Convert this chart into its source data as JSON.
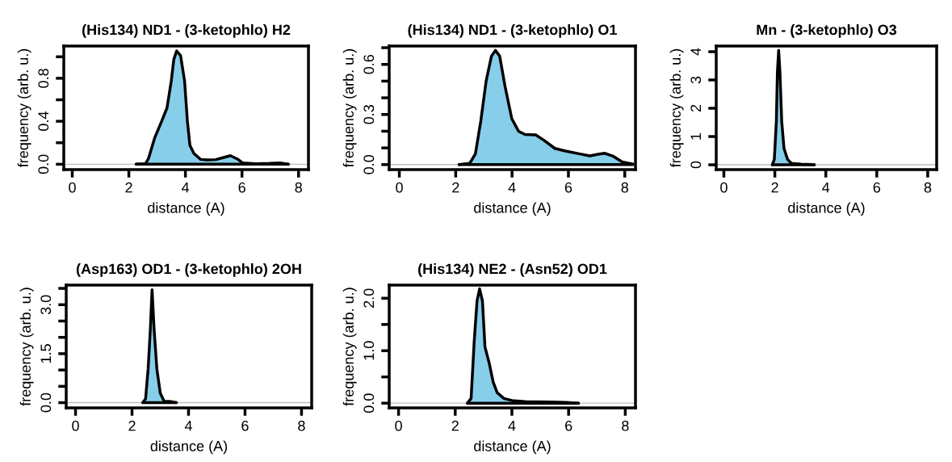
{
  "chart_data": [
    {
      "type": "area",
      "title": "(His134) ND1 - (3-ketophlo) H2",
      "xlabel": "distance (A)",
      "ylabel": "frequency (arb. u.)",
      "x": [
        2.26,
        2.59,
        2.69,
        2.92,
        3.16,
        3.35,
        3.5,
        3.59,
        3.69,
        3.83,
        3.97,
        4.07,
        4.16,
        4.3,
        4.54,
        4.78,
        5.07,
        5.35,
        5.59,
        5.83,
        6.02,
        6.5,
        6.97,
        7.35,
        7.64
      ],
      "series": [
        {
          "color": "#87ceeb",
          "values": [
            0,
            0.005,
            0.05,
            0.25,
            0.4,
            0.525,
            0.775,
            0.975,
            1.055,
            1.01,
            0.775,
            0.4,
            0.175,
            0.1,
            0.045,
            0.04,
            0.043,
            0.063,
            0.08,
            0.05,
            0.013,
            0.005,
            0.008,
            0.013,
            0
          ]
        }
      ],
      "xlim": [
        -0.3,
        8.35
      ],
      "xticks": [
        0,
        2,
        4,
        6,
        8
      ],
      "ylim": [
        -0.05,
        1.1
      ],
      "yticks": [
        {
          "value": 0,
          "label": "0.0"
        },
        {
          "value": 0.2,
          "label": null
        },
        {
          "value": 0.4,
          "label": "0.4"
        },
        {
          "value": 0.6,
          "label": null
        },
        {
          "value": 0.8,
          "label": "0.8"
        },
        {
          "value": 1.0,
          "label": null
        }
      ],
      "ref_lines": [
        {
          "axis": "y",
          "value": 0,
          "color": "#bebebe"
        }
      ],
      "grid": false,
      "legend": false
    },
    {
      "type": "area",
      "title": "(His134) ND1 - (3-ketophlo) O1",
      "xlabel": "distance (A)",
      "ylabel": "frequency (arb. u.)",
      "x": [
        2.12,
        2.5,
        2.7,
        2.89,
        3.08,
        3.27,
        3.41,
        3.56,
        3.75,
        3.99,
        4.23,
        4.46,
        4.84,
        5.13,
        5.52,
        5.9,
        6.38,
        6.76,
        7.05,
        7.28,
        7.57,
        7.91,
        8.29
      ],
      "series": [
        {
          "color": "#87ceeb",
          "values": [
            0,
            0.008,
            0.065,
            0.26,
            0.5,
            0.65,
            0.684,
            0.65,
            0.47,
            0.275,
            0.2,
            0.18,
            0.178,
            0.146,
            0.097,
            0.081,
            0.065,
            0.052,
            0.062,
            0.068,
            0.052,
            0.016,
            0.003
          ]
        }
      ],
      "xlim": [
        -0.36,
        8.38
      ],
      "xticks": [
        0,
        2,
        4,
        6,
        8
      ],
      "ylim": [
        -0.03,
        0.71
      ],
      "yticks": [
        {
          "value": 0,
          "label": "0.0"
        },
        {
          "value": 0.1,
          "label": null
        },
        {
          "value": 0.2,
          "label": null
        },
        {
          "value": 0.3,
          "label": "0.3"
        },
        {
          "value": 0.4,
          "label": null
        },
        {
          "value": 0.5,
          "label": null
        },
        {
          "value": 0.6,
          "label": "0.6"
        },
        {
          "value": 0.7,
          "label": null
        }
      ],
      "ref_lines": [
        {
          "axis": "y",
          "value": 0,
          "color": "#bebebe"
        }
      ],
      "grid": false,
      "legend": false
    },
    {
      "type": "area",
      "title": "Mn - (3-ketophlo) O3",
      "xlabel": "distance (A)",
      "ylabel": "frequency (arb. u.)",
      "x": [
        1.9,
        1.98,
        2.06,
        2.1,
        2.15,
        2.2,
        2.27,
        2.36,
        2.5,
        2.65,
        3.03,
        3.5,
        3.55
      ],
      "series": [
        {
          "color": "#87ceeb",
          "values": [
            0,
            0.19,
            1.54,
            3.28,
            4.05,
            3.28,
            1.54,
            0.58,
            0.19,
            0.05,
            0.02,
            0.01,
            0
          ]
        }
      ],
      "xlim": [
        -0.3,
        8.35
      ],
      "xticks": [
        0,
        2,
        4,
        6,
        8
      ],
      "ylim": [
        -0.17,
        4.2
      ],
      "yticks": [
        0,
        1,
        2,
        3,
        4
      ],
      "ref_lines": [
        {
          "axis": "y",
          "value": 0,
          "color": "#bebebe"
        }
      ],
      "grid": false,
      "legend": false
    },
    {
      "type": "area",
      "title": "(Asp163) OD1 - (3-ketophlo) 2OH",
      "xlabel": "distance (A)",
      "ylabel": "frequency (arb. u.)",
      "x": [
        2.38,
        2.48,
        2.57,
        2.65,
        2.71,
        2.78,
        2.88,
        3.0,
        3.14,
        3.33,
        3.57
      ],
      "series": [
        {
          "color": "#87ceeb",
          "values": [
            0,
            0.12,
            1.03,
            2.27,
            3.46,
            2.27,
            1.03,
            0.29,
            0.04,
            0.04,
            0
          ]
        }
      ],
      "xlim": [
        -0.33,
        8.36
      ],
      "xticks": [
        0,
        2,
        4,
        6,
        8
      ],
      "ylim": [
        -0.16,
        3.6
      ],
      "yticks": [
        {
          "value": 0,
          "label": "0.0"
        },
        {
          "value": 0.5,
          "label": null
        },
        {
          "value": 1.0,
          "label": null
        },
        {
          "value": 1.5,
          "label": "1.5"
        },
        {
          "value": 2.0,
          "label": null
        },
        {
          "value": 2.5,
          "label": null
        },
        {
          "value": 3.0,
          "label": "3.0"
        },
        {
          "value": 3.5,
          "label": null
        }
      ],
      "ref_lines": [
        {
          "axis": "y",
          "value": 0,
          "color": "#bebebe"
        }
      ],
      "grid": false,
      "legend": false
    },
    {
      "type": "area",
      "title": "(His134) NE2 - (Asn52) OD1",
      "xlabel": "distance (A)",
      "ylabel": "frequency (arb. u.)",
      "x": [
        2.43,
        2.56,
        2.67,
        2.77,
        2.86,
        2.96,
        3.05,
        3.2,
        3.34,
        3.48,
        3.72,
        4.01,
        4.48,
        4.96,
        5.44,
        5.92,
        6.35
      ],
      "series": [
        {
          "color": "#87ceeb",
          "values": [
            0,
            0.09,
            1.18,
            1.95,
            2.18,
            1.95,
            1.07,
            0.76,
            0.4,
            0.2,
            0.09,
            0.05,
            0.03,
            0.026,
            0.02,
            0.015,
            0
          ]
        }
      ],
      "xlim": [
        -0.33,
        8.36
      ],
      "xticks": [
        0,
        2,
        4,
        6,
        8
      ],
      "ylim": [
        -0.09,
        2.25
      ],
      "yticks": [
        {
          "value": 0,
          "label": "0.0"
        },
        {
          "value": 0.5,
          "label": null
        },
        {
          "value": 1.0,
          "label": "1.0"
        },
        {
          "value": 1.5,
          "label": null
        },
        {
          "value": 2.0,
          "label": "2.0"
        }
      ],
      "ref_lines": [
        {
          "axis": "y",
          "value": 0,
          "color": "#bebebe"
        }
      ],
      "grid": false,
      "legend": false
    }
  ]
}
